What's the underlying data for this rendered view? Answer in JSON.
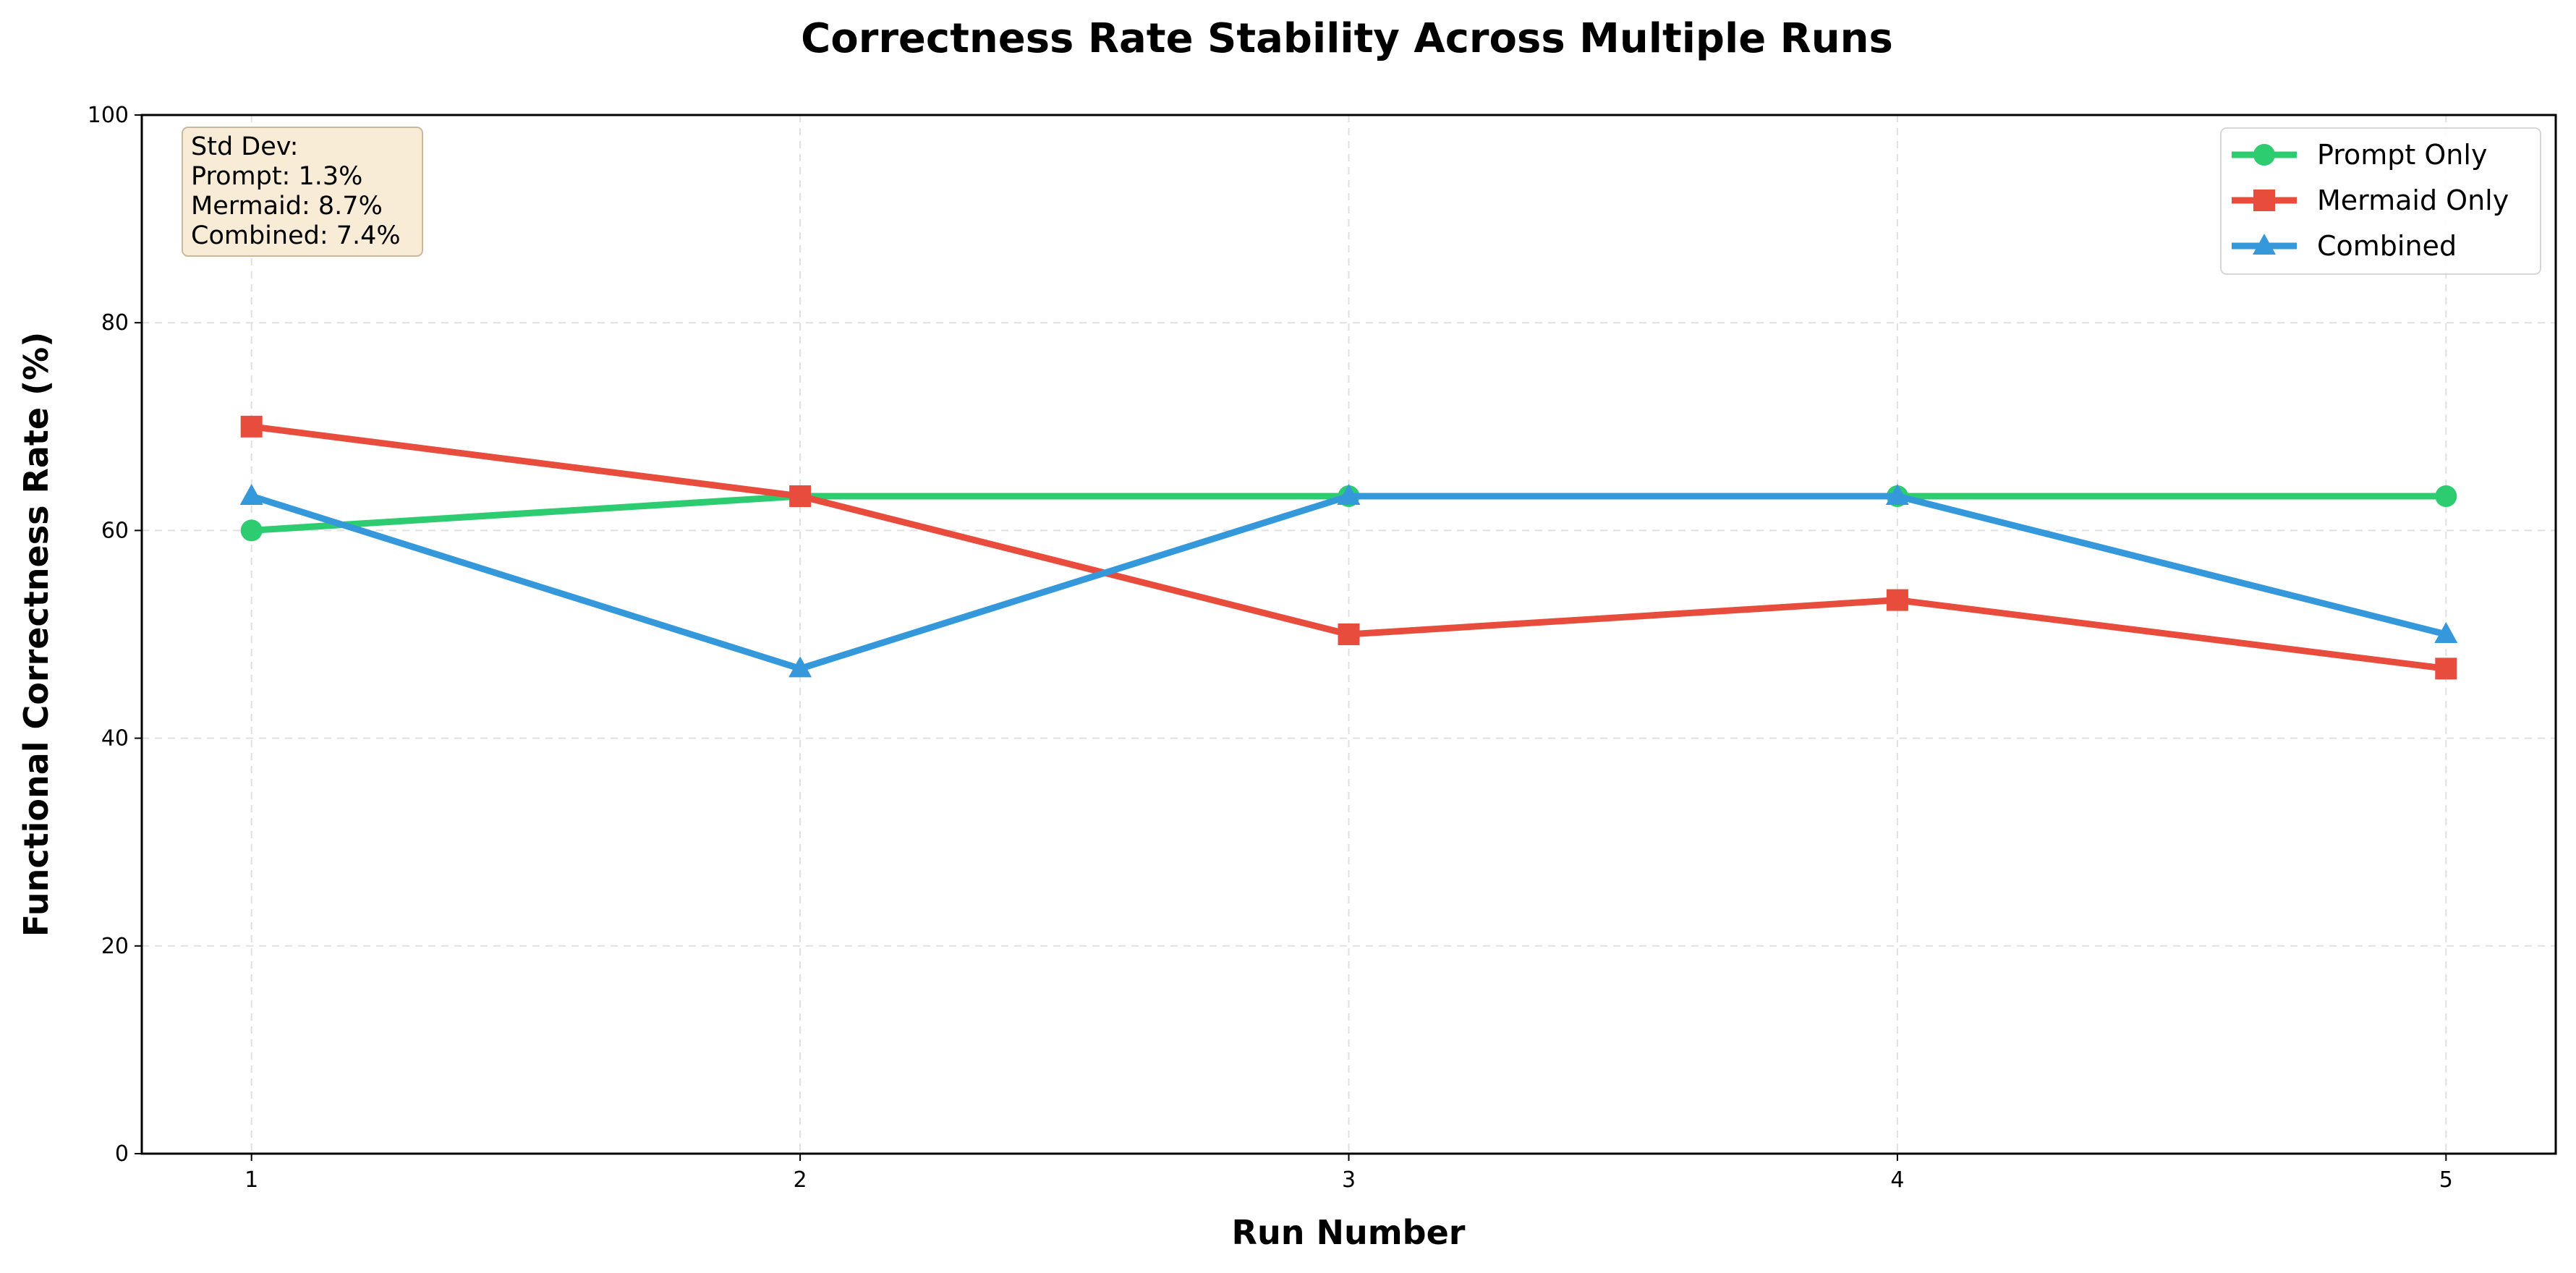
{
  "chart_data": {
    "type": "line",
    "title": "Correctness Rate Stability Across Multiple Runs",
    "xlabel": "Run Number",
    "ylabel": "Functional Correctness Rate (%)",
    "x": [
      1,
      2,
      3,
      4,
      5
    ],
    "xlim": [
      0.8,
      5.2
    ],
    "ylim": [
      0,
      100
    ],
    "xticks": [
      "1",
      "2",
      "3",
      "4",
      "5"
    ],
    "yticks": [
      "0",
      "20",
      "40",
      "60",
      "80",
      "100"
    ],
    "grid": true,
    "legend_position": "top-right",
    "series": [
      {
        "name": "Prompt Only",
        "values": [
          60.0,
          63.3,
          63.3,
          63.3,
          63.3
        ],
        "color": "#2ecc71",
        "marker": "circle"
      },
      {
        "name": "Mermaid Only",
        "values": [
          70.0,
          63.3,
          50.0,
          53.3,
          46.7
        ],
        "color": "#e74c3c",
        "marker": "square"
      },
      {
        "name": "Combined",
        "values": [
          63.3,
          46.7,
          63.3,
          63.3,
          50.0
        ],
        "color": "#3498db",
        "marker": "triangle"
      }
    ],
    "annotation": {
      "lines": [
        "Std Dev:",
        "Prompt: 1.3%",
        "Mermaid: 8.7%",
        "Combined: 7.4%"
      ],
      "position": "top-left",
      "background": "#f8ecd6",
      "border": "#c9b89a"
    }
  }
}
